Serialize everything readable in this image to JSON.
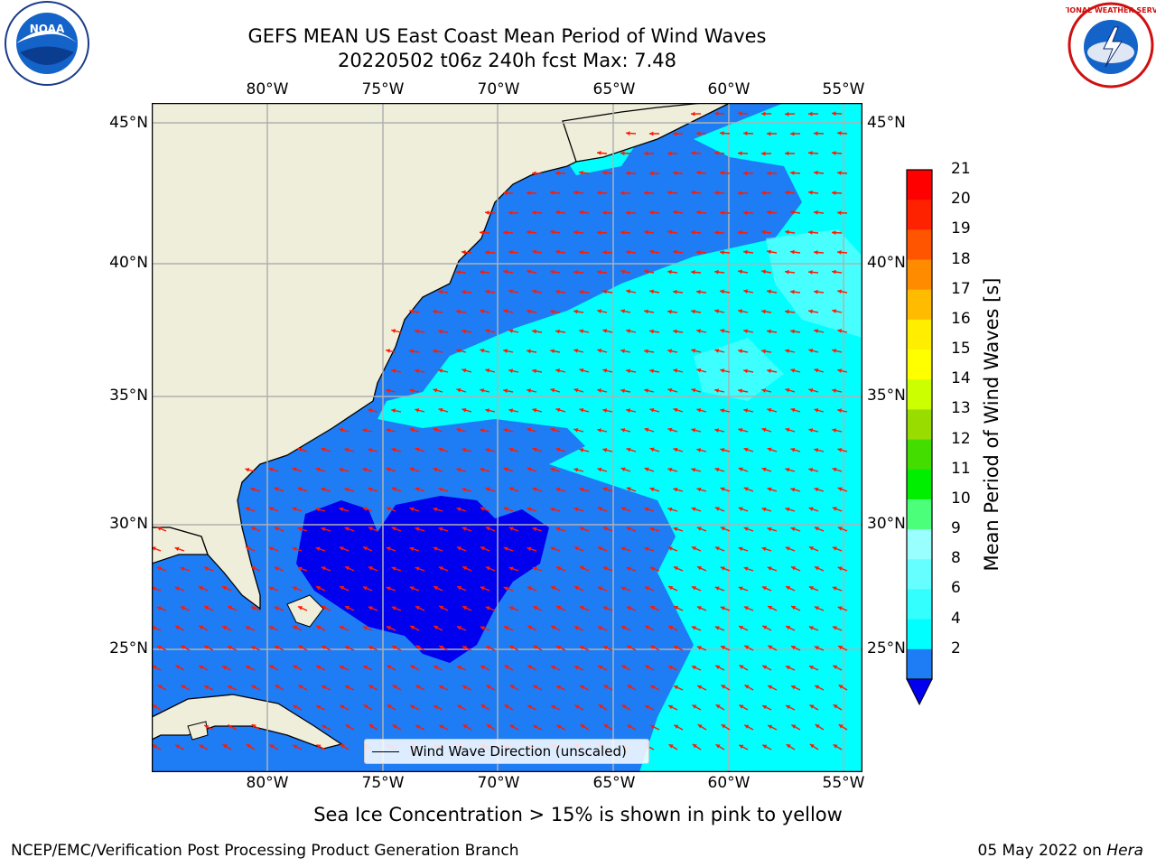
{
  "title": {
    "line1": "GEFS MEAN US East Coast Mean Period of Wind Waves",
    "line2": "20220502 t06z 240h fcst   Max: 7.48"
  },
  "axes": {
    "lon_labels": [
      "80°W",
      "75°W",
      "70°W",
      "65°W",
      "60°W",
      "55°W"
    ],
    "lat_labels": [
      "45°N",
      "40°N",
      "35°N",
      "30°N",
      "25°N"
    ]
  },
  "colorbar": {
    "label": "Mean Period of Wind Waves [s]",
    "ticks": [
      "21",
      "20",
      "19",
      "18",
      "17",
      "16",
      "15",
      "14",
      "13",
      "12",
      "11",
      "10",
      "9",
      "8",
      "6",
      "4",
      "2"
    ],
    "levels": [
      2,
      4,
      6,
      7,
      8,
      9,
      10,
      11,
      12,
      13,
      14,
      15,
      16,
      17,
      18,
      19,
      20,
      21
    ],
    "colors": [
      "#0000ee",
      "#1e7df5",
      "#00ffff",
      "#33ffff",
      "#66ffff",
      "#99ffff",
      "#4cff7a",
      "#00ee00",
      "#44dd00",
      "#99dd00",
      "#ccff00",
      "#ffff00",
      "#ffee00",
      "#ffbb00",
      "#ff8c00",
      "#ff5500",
      "#ff2200",
      "#ff0000"
    ]
  },
  "legend": {
    "label": "Wind Wave Direction (unscaled)"
  },
  "footer": {
    "sea_ice": "Sea Ice Concentration > 15% is shown in pink to yellow",
    "credit": "NCEP/EMC/Verification Post Processing Product Generation Branch",
    "date_prefix": "05 May 2022 on",
    "date_host": "Hera"
  },
  "logos": {
    "noaa": "NOAA",
    "nws": "NATIONAL WEATHER SERVICE"
  },
  "colors": {
    "land": "#efeedb",
    "arrow": "#ff1a00",
    "grid": "#b0b0b0"
  }
}
